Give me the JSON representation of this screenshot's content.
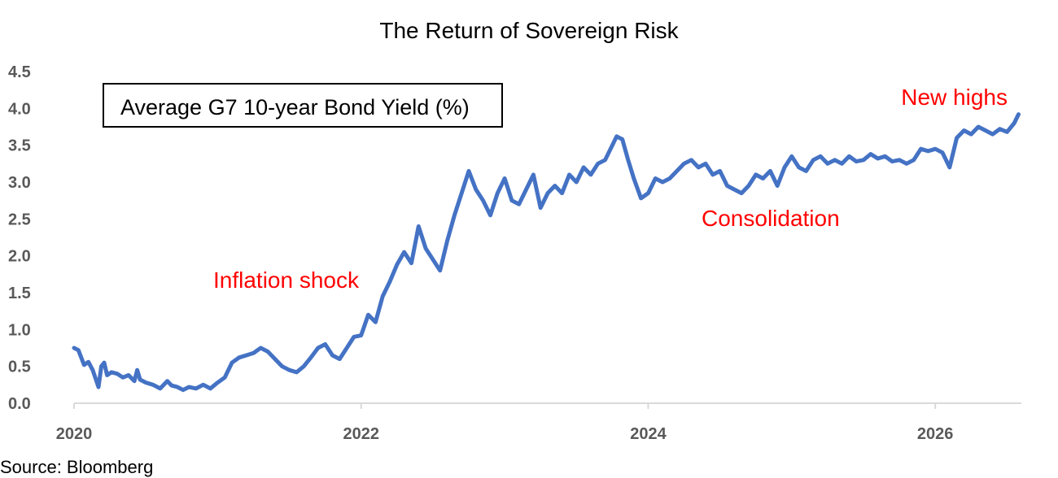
{
  "chart_data": {
    "type": "line",
    "title": "The Return of Sovereign Risk",
    "legend_box_label": "Average G7 10-year Bond Yield (%)",
    "ylim": [
      0.0,
      4.5
    ],
    "yticks": [
      "0.0",
      "0.5",
      "1.0",
      "1.5",
      "2.0",
      "2.5",
      "3.0",
      "3.5",
      "4.0",
      "4.5"
    ],
    "xlim": [
      2020,
      2026.6
    ],
    "xticks": [
      "2020",
      "2022",
      "2024",
      "2026"
    ],
    "grid": false,
    "annotations": [
      {
        "text": "Inflation shock",
        "color": "#ff0000"
      },
      {
        "text": "Consolidation",
        "color": "#ff0000"
      },
      {
        "text": "New highs",
        "color": "#ff0000"
      }
    ],
    "series": [
      {
        "color": "#4472c4",
        "x": [
          2020.0,
          2020.03,
          2020.07,
          2020.1,
          2020.13,
          2020.17,
          2020.19,
          2020.21,
          2020.23,
          2020.26,
          2020.3,
          2020.34,
          2020.38,
          2020.42,
          2020.44,
          2020.46,
          2020.5,
          2020.55,
          2020.6,
          2020.65,
          2020.68,
          2020.72,
          2020.76,
          2020.8,
          2020.85,
          2020.9,
          2020.95,
          2021.0,
          2021.05,
          2021.1,
          2021.15,
          2021.2,
          2021.25,
          2021.3,
          2021.35,
          2021.4,
          2021.45,
          2021.5,
          2021.55,
          2021.6,
          2021.65,
          2021.7,
          2021.75,
          2021.8,
          2021.85,
          2021.9,
          2021.95,
          2022.0,
          2022.05,
          2022.1,
          2022.15,
          2022.2,
          2022.25,
          2022.3,
          2022.35,
          2022.4,
          2022.45,
          2022.5,
          2022.55,
          2022.6,
          2022.65,
          2022.7,
          2022.75,
          2022.8,
          2022.85,
          2022.9,
          2022.95,
          2023.0,
          2023.05,
          2023.1,
          2023.15,
          2023.2,
          2023.25,
          2023.3,
          2023.35,
          2023.4,
          2023.45,
          2023.5,
          2023.55,
          2023.6,
          2023.65,
          2023.7,
          2023.75,
          2023.78,
          2023.82,
          2023.86,
          2023.9,
          2023.95,
          2024.0,
          2024.05,
          2024.1,
          2024.15,
          2024.2,
          2024.25,
          2024.3,
          2024.35,
          2024.4,
          2024.45,
          2024.5,
          2024.55,
          2024.6,
          2024.65,
          2024.7,
          2024.75,
          2024.8,
          2024.85,
          2024.9,
          2024.95,
          2025.0,
          2025.05,
          2025.1,
          2025.15,
          2025.2,
          2025.25,
          2025.3,
          2025.35,
          2025.4,
          2025.45,
          2025.5,
          2025.55,
          2025.6,
          2025.65,
          2025.7,
          2025.75,
          2025.8,
          2025.85,
          2025.9,
          2025.95,
          2026.0,
          2026.05,
          2026.1,
          2026.15,
          2026.2,
          2026.25,
          2026.3,
          2026.35,
          2026.4,
          2026.45,
          2026.5,
          2026.55,
          2026.58
        ],
        "values": [
          0.75,
          0.72,
          0.52,
          0.56,
          0.45,
          0.22,
          0.5,
          0.55,
          0.38,
          0.42,
          0.4,
          0.35,
          0.38,
          0.3,
          0.45,
          0.32,
          0.28,
          0.25,
          0.2,
          0.3,
          0.24,
          0.22,
          0.18,
          0.22,
          0.2,
          0.25,
          0.2,
          0.28,
          0.35,
          0.55,
          0.62,
          0.65,
          0.68,
          0.75,
          0.7,
          0.6,
          0.5,
          0.45,
          0.42,
          0.5,
          0.62,
          0.75,
          0.8,
          0.65,
          0.6,
          0.75,
          0.9,
          0.92,
          1.2,
          1.1,
          1.45,
          1.65,
          1.88,
          2.05,
          1.9,
          2.4,
          2.1,
          1.95,
          1.8,
          2.2,
          2.55,
          2.85,
          3.15,
          2.9,
          2.75,
          2.55,
          2.85,
          3.05,
          2.75,
          2.7,
          2.9,
          3.1,
          2.65,
          2.85,
          2.95,
          2.85,
          3.1,
          3.0,
          3.2,
          3.1,
          3.25,
          3.3,
          3.5,
          3.62,
          3.58,
          3.3,
          3.05,
          2.78,
          2.85,
          3.05,
          3.0,
          3.05,
          3.15,
          3.25,
          3.3,
          3.2,
          3.25,
          3.1,
          3.15,
          2.95,
          2.9,
          2.85,
          2.95,
          3.1,
          3.05,
          3.15,
          2.95,
          3.2,
          3.35,
          3.2,
          3.15,
          3.3,
          3.35,
          3.25,
          3.3,
          3.25,
          3.35,
          3.28,
          3.3,
          3.38,
          3.32,
          3.35,
          3.28,
          3.3,
          3.25,
          3.3,
          3.45,
          3.42,
          3.45,
          3.4,
          3.2,
          3.6,
          3.7,
          3.65,
          3.75,
          3.7,
          3.65,
          3.72,
          3.68,
          3.8,
          3.92
        ]
      }
    ]
  },
  "footer": {
    "source": "Source: Bloomberg"
  }
}
